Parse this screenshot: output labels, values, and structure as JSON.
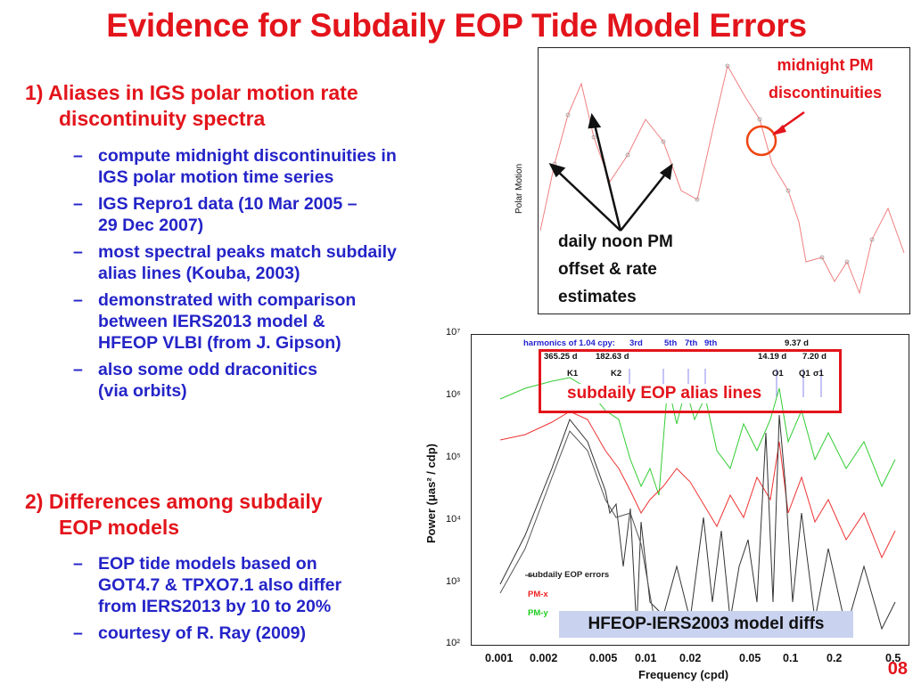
{
  "title": "Evidence for Subdaily EOP Tide Model Errors",
  "section1": {
    "line1": "1) Aliases in IGS polar motion rate",
    "line2": "discontinuity spectra"
  },
  "bullets1": [
    {
      "l1": "compute midnight discontinuities in",
      "l2": "IGS polar motion time series"
    },
    {
      "l1": "IGS Repro1 data (10 Mar 2005 –",
      "l2": "29 Dec 2007)"
    },
    {
      "l1": "most spectral peaks match subdaily",
      "l2": "alias lines (Kouba, 2003)"
    },
    {
      "l1": "demonstrated with comparison",
      "l2": "between IERS2013 model &",
      "l3": "HFEOP VLBI (from J. Gipson)"
    },
    {
      "l1": "also some odd draconitics",
      "l2": "(via orbits)"
    }
  ],
  "section2": {
    "line1": "2) Differences among subdaily",
    "line2": "EOP models"
  },
  "bullets2": [
    {
      "l1": "EOP tide models based on",
      "l2": "GOT4.7 & TPXO7.1 also differ",
      "l3": "from IERS2013 by 10 to 20%"
    },
    {
      "l1": "courtesy of R. Ray (2009)"
    }
  ],
  "dash": "–",
  "pm_plot": {
    "ylabel": "Polar Motion",
    "callout_midnight": {
      "l1": "midnight PM",
      "l2": "discontinuities"
    },
    "callout_noon": {
      "l1": "daily noon PM",
      "l2": "offset & rate",
      "l3": "estimates"
    }
  },
  "spectrum": {
    "ylabel": "Power (μas² / cdp)",
    "xlabel": "Frequency (cpd)",
    "y_ticks": [
      "10⁷",
      "10⁶",
      "10⁵",
      "10⁴",
      "10³",
      "10²"
    ],
    "x_ticks": [
      "0.001",
      "0.002",
      "0.005",
      "0.01",
      "0.02",
      "0.05",
      "0.1",
      "0.2",
      "0.5"
    ],
    "harmonics_label": "harmonics of 1.04 cpy:",
    "harmonics": [
      "3rd",
      "5th",
      "7th",
      "9th"
    ],
    "period_labels": [
      "365.25 d",
      "182.63 d",
      "14.19 d",
      "9.37 d",
      "7.20 d"
    ],
    "tide_labels": [
      "K1",
      "K2",
      "O1",
      "Q1",
      "σ1"
    ],
    "legend": [
      "subdaily EOP errors",
      "PM-x",
      "PM-y"
    ],
    "legend_colors": [
      "#222222",
      "#ee2222",
      "#22cc22"
    ],
    "alias_label": "subdaily EOP alias lines",
    "hfeop_label": "HFEOP-IERS2003 model diffs"
  },
  "page_number": "08"
}
